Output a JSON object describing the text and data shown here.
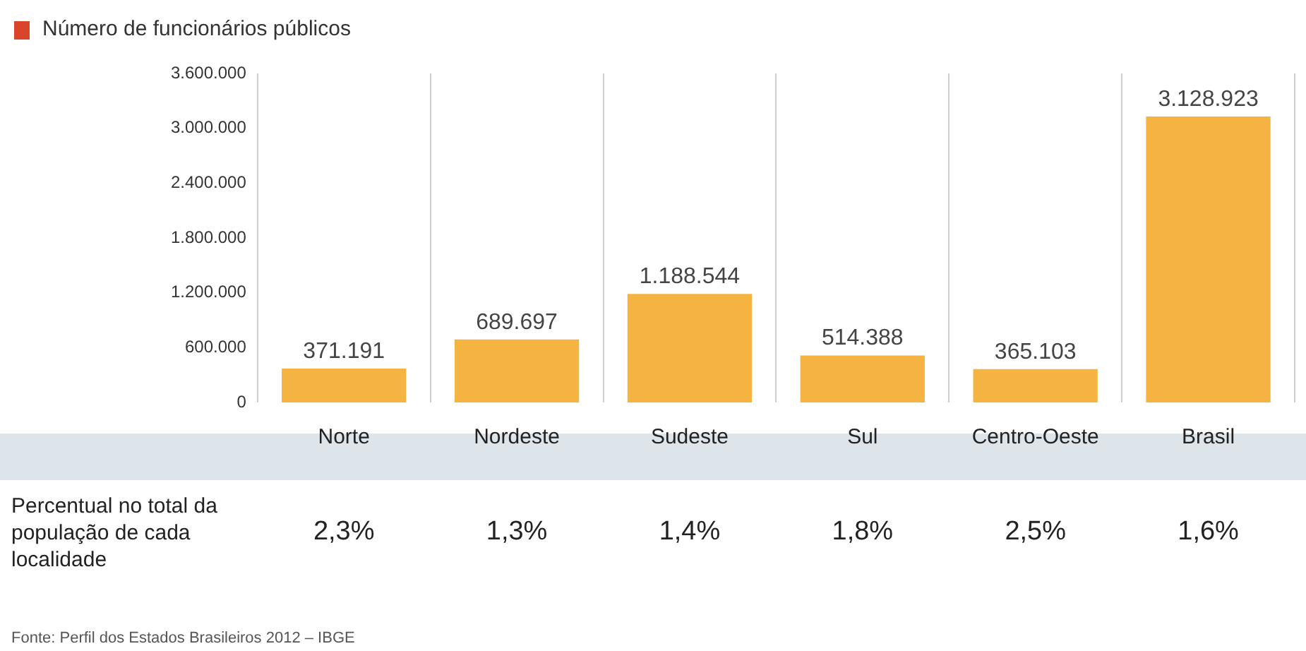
{
  "chart_data": {
    "type": "bar",
    "title": "Número de funcionários públicos",
    "categories": [
      "Norte",
      "Nordeste",
      "Sudeste",
      "Sul",
      "Centro-Oeste",
      "Brasil"
    ],
    "values": [
      371191,
      689697,
      1188544,
      514388,
      365103,
      3128923
    ],
    "value_labels": [
      "371.191",
      "689.697",
      "1.188.544",
      "514.388",
      "365.103",
      "3.128.923"
    ],
    "color": "#f5b342",
    "ylim": [
      0,
      3600000
    ],
    "yticks": [
      {
        "value": 0,
        "label": "0"
      },
      {
        "value": 600000,
        "label": "600.000"
      },
      {
        "value": 1200000,
        "label": "1.200.000"
      },
      {
        "value": 1800000,
        "label": "1.800.000"
      },
      {
        "value": 2400000,
        "label": "2.400.000"
      },
      {
        "value": 3000000,
        "label": "3.000.000"
      },
      {
        "value": 3600000,
        "label": "3.600.000"
      }
    ],
    "grid": "x",
    "annotations": [
      "Percentual no total da população de cada localidade",
      "2,3%",
      "1,3%",
      "1,4%",
      "1,8%",
      "2,5%",
      "1,6%",
      "Fonte: Perfil dos Estados Brasileiros 2012 – IBGE"
    ]
  }
}
